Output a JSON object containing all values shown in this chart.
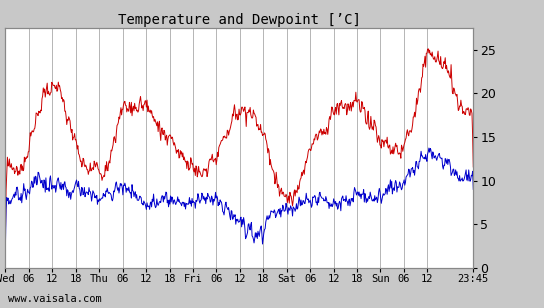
{
  "title": "Temperature and Dewpoint [’C]",
  "bg_color": "#c8c8c8",
  "plot_bg_color": "#ffffff",
  "grid_color": "#aaaaaa",
  "temp_color": "#cc0000",
  "dew_color": "#0000cc",
  "ylabel_right_ticks": [
    0,
    5,
    10,
    15,
    20,
    25
  ],
  "watermark": "www.vaisala.com",
  "ylim": [
    0,
    27.5
  ],
  "hours_total": 119.75,
  "tick_hours": [
    0,
    6,
    12,
    18,
    24,
    30,
    36,
    42,
    48,
    54,
    60,
    66,
    72,
    78,
    84,
    90,
    96,
    102,
    108,
    119.75
  ],
  "tick_labels": [
    "Wed",
    "06",
    "12",
    "18",
    "Thu",
    "06",
    "12",
    "18",
    "Fri",
    "06",
    "12",
    "18",
    "Sat",
    "06",
    "12",
    "18",
    "Sun",
    "06",
    "12",
    "23:45"
  ]
}
